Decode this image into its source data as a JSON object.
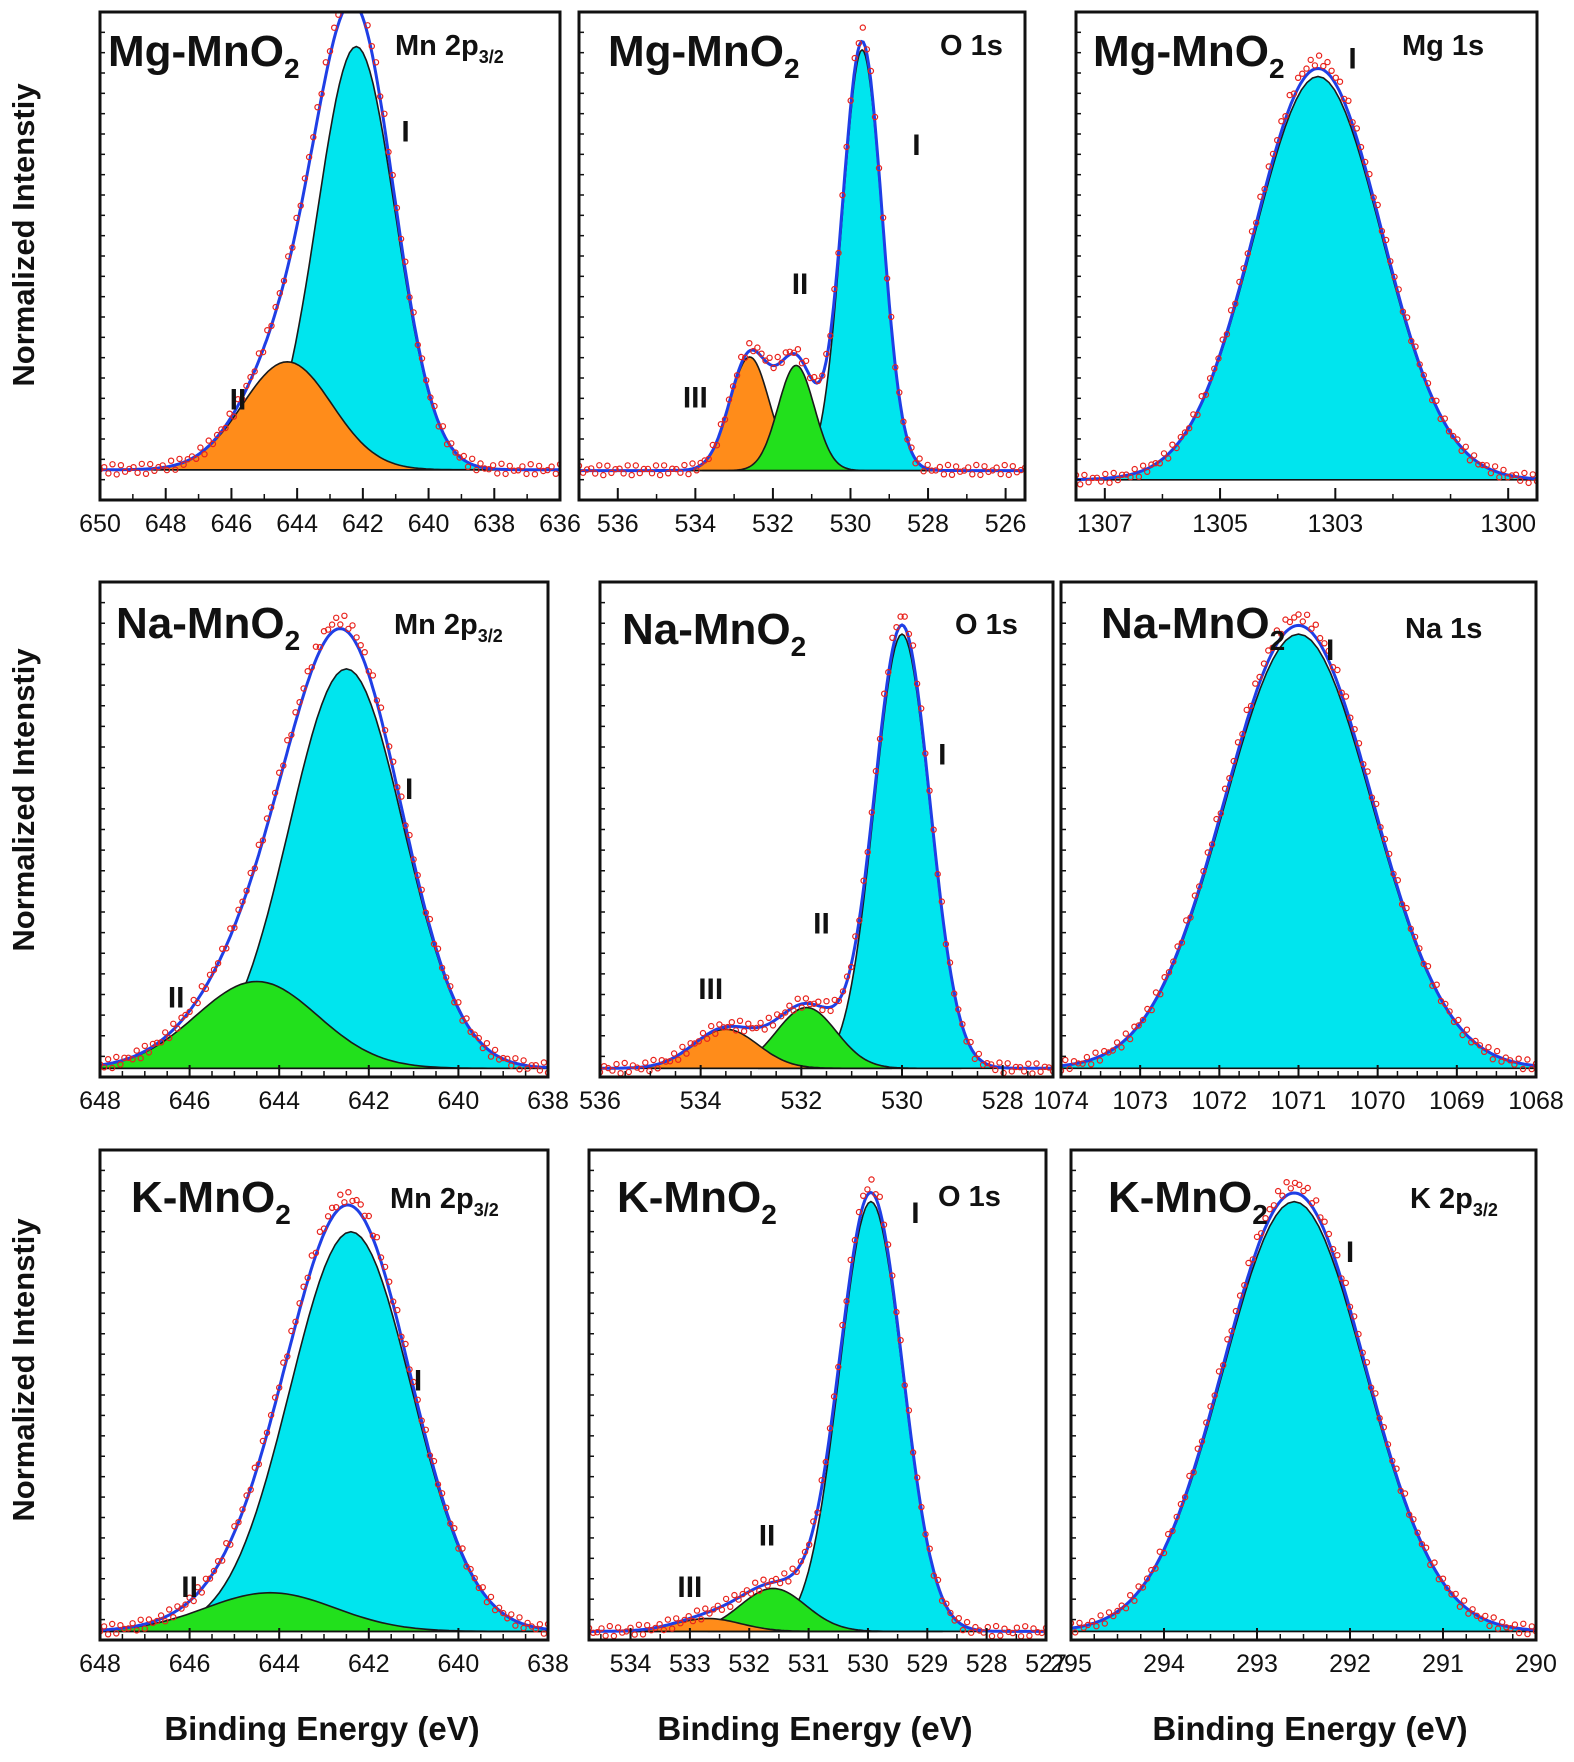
{
  "figure": {
    "y_axis_label": "Normalized Intenstiy",
    "x_axis_label": "Binding Energy (eV)"
  },
  "colors": {
    "peak_I": "#00e5ee",
    "peak_II_orange": "#ff8c1a",
    "peak_II_green": "#22e01c",
    "peak_III": "#ff8c1a",
    "envelope": "#1f3fe6",
    "raw_data": "#e8221c",
    "background": "#111111"
  },
  "chart_data": [
    {
      "type": "area",
      "sample": "Mg-MnO",
      "subscript": "2",
      "region": "Mn 2p",
      "region_sub": "3/2",
      "xlim": [
        650,
        636
      ],
      "ticks": [
        650,
        648,
        646,
        644,
        642,
        640,
        638,
        636
      ],
      "minor_step": 1,
      "ylim": [
        -0.05,
        1.08
      ],
      "baseline": 0.02,
      "peaks": [
        {
          "label": "I",
          "center": 642.2,
          "height": 0.98,
          "fwhm": 2.8,
          "color": "#00e5ee"
        },
        {
          "label": "II",
          "center": 644.3,
          "height": 0.25,
          "fwhm": 3.2,
          "color": "#ff8c1a"
        }
      ],
      "labels": [
        {
          "text": "I",
          "x": 640.7,
          "y": 0.78
        },
        {
          "text": "II",
          "x": 645.8,
          "y": 0.16
        }
      ]
    },
    {
      "type": "area",
      "sample": "Mg-MnO",
      "subscript": "2",
      "region": "O 1s",
      "region_sub": "",
      "xlim": [
        537,
        525.5
      ],
      "ticks": [
        536,
        534,
        532,
        530,
        528,
        526
      ],
      "minor_step": 1,
      "ylim": [
        -0.04,
        1.12
      ],
      "baseline": 0.03,
      "peaks": [
        {
          "label": "I",
          "center": 529.7,
          "height": 1.0,
          "fwhm": 1.2,
          "color": "#00e5ee"
        },
        {
          "label": "II",
          "center": 531.4,
          "height": 0.25,
          "fwhm": 1.1,
          "color": "#22e01c"
        },
        {
          "label": "III",
          "center": 532.6,
          "height": 0.27,
          "fwhm": 1.2,
          "color": "#ff8c1a"
        }
      ],
      "labels": [
        {
          "text": "I",
          "x": 528.3,
          "y": 0.78
        },
        {
          "text": "II",
          "x": 531.3,
          "y": 0.45
        },
        {
          "text": "III",
          "x": 534.0,
          "y": 0.18
        }
      ]
    },
    {
      "type": "area",
      "sample": "Mg-MnO",
      "subscript": "2",
      "region": "Mg 1s",
      "region_sub": "",
      "xlim": [
        1307.5,
        1299.5
      ],
      "ticks": [
        1307,
        1305,
        1303,
        1300
      ],
      "minor_step": 1,
      "ylim": [
        -0.05,
        1.16
      ],
      "baseline": 0.0,
      "peaks": [
        {
          "label": "I",
          "center": 1303.3,
          "height": 1.0,
          "fwhm": 2.6,
          "color": "#00e5ee"
        }
      ],
      "labels": [
        {
          "text": "I",
          "x": 1302.7,
          "y": 1.02
        }
      ]
    },
    {
      "type": "area",
      "sample": "Na-MnO",
      "subscript": "2",
      "region": "Mn 2p",
      "region_sub": "3/2",
      "xlim": [
        648,
        638
      ],
      "ticks": [
        648,
        646,
        644,
        642,
        640,
        638
      ],
      "minor_step": 0.5,
      "ylim": [
        -0.02,
        1.12
      ],
      "baseline": 0.0,
      "peaks": [
        {
          "label": "I",
          "center": 642.5,
          "height": 0.92,
          "fwhm": 3.0,
          "color": "#00e5ee"
        },
        {
          "label": "II",
          "center": 644.5,
          "height": 0.2,
          "fwhm": 3.2,
          "color": "#22e01c"
        }
      ],
      "labels": [
        {
          "text": "I",
          "x": 641.1,
          "y": 0.62
        },
        {
          "text": "II",
          "x": 646.3,
          "y": 0.14
        }
      ]
    },
    {
      "type": "area",
      "sample": "Na-MnO",
      "subscript": "2",
      "region": "O 1s",
      "region_sub": "",
      "xlim": [
        536,
        527
      ],
      "ticks": [
        536,
        534,
        532,
        530,
        528
      ],
      "minor_step": 0.5,
      "ylim": [
        -0.02,
        1.12
      ],
      "baseline": 0.0,
      "peaks": [
        {
          "label": "I",
          "center": 530.0,
          "height": 1.0,
          "fwhm": 1.3,
          "color": "#00e5ee"
        },
        {
          "label": "II",
          "center": 531.9,
          "height": 0.14,
          "fwhm": 1.4,
          "color": "#22e01c"
        },
        {
          "label": "III",
          "center": 533.5,
          "height": 0.09,
          "fwhm": 1.5,
          "color": "#ff8c1a"
        }
      ],
      "labels": [
        {
          "text": "I",
          "x": 529.2,
          "y": 0.7
        },
        {
          "text": "II",
          "x": 531.6,
          "y": 0.31
        },
        {
          "text": "III",
          "x": 533.8,
          "y": 0.16
        }
      ]
    },
    {
      "type": "area",
      "sample": "Na-MnO",
      "subscript": "2",
      "region": "Na 1s",
      "region_sub": "",
      "xlim": [
        1074,
        1068
      ],
      "ticks": [
        1074,
        1073,
        1072,
        1071,
        1070,
        1069,
        1068
      ],
      "minor_step": 0.25,
      "ylim": [
        -0.02,
        1.12
      ],
      "baseline": 0.0,
      "peaks": [
        {
          "label": "I",
          "center": 1071.0,
          "height": 1.0,
          "fwhm": 2.2,
          "color": "#00e5ee"
        }
      ],
      "labels": [
        {
          "text": "I",
          "x": 1070.6,
          "y": 0.94
        }
      ]
    },
    {
      "type": "area",
      "sample": "K-MnO",
      "subscript": "2",
      "region": "Mn 2p",
      "region_sub": "3/2",
      "xlim": [
        648,
        638
      ],
      "ticks": [
        648,
        646,
        644,
        642,
        640,
        638
      ],
      "minor_step": 0.5,
      "ylim": [
        -0.02,
        1.12
      ],
      "baseline": 0.0,
      "peaks": [
        {
          "label": "I",
          "center": 642.4,
          "height": 0.93,
          "fwhm": 3.2,
          "color": "#00e5ee"
        },
        {
          "label": "II",
          "center": 644.2,
          "height": 0.09,
          "fwhm": 3.4,
          "color": "#22e01c"
        }
      ],
      "labels": [
        {
          "text": "I",
          "x": 640.9,
          "y": 0.56
        },
        {
          "text": "II",
          "x": 646.0,
          "y": 0.08
        }
      ]
    },
    {
      "type": "area",
      "sample": "K-MnO",
      "subscript": "2",
      "region": "O 1s",
      "region_sub": "",
      "xlim": [
        534.7,
        527
      ],
      "ticks": [
        534,
        533,
        532,
        531,
        530,
        529,
        528,
        527
      ],
      "minor_step": 0.5,
      "ylim": [
        -0.02,
        1.12
      ],
      "baseline": 0.0,
      "peaks": [
        {
          "label": "I",
          "center": 529.95,
          "height": 1.0,
          "fwhm": 1.25,
          "color": "#00e5ee"
        },
        {
          "label": "II",
          "center": 531.6,
          "height": 0.1,
          "fwhm": 1.3,
          "color": "#22e01c"
        },
        {
          "label": "III",
          "center": 532.7,
          "height": 0.03,
          "fwhm": 1.3,
          "color": "#ff8c1a"
        }
      ],
      "labels": [
        {
          "text": "I",
          "x": 529.2,
          "y": 0.95
        },
        {
          "text": "II",
          "x": 531.7,
          "y": 0.2
        },
        {
          "text": "III",
          "x": 533.0,
          "y": 0.08
        }
      ]
    },
    {
      "type": "area",
      "sample": "K-MnO",
      "subscript": "2",
      "region": "K 2p",
      "region_sub": "3/2",
      "xlim": [
        295,
        290
      ],
      "ticks": [
        295,
        294,
        293,
        292,
        291,
        290
      ],
      "minor_step": 0.25,
      "ylim": [
        -0.02,
        1.12
      ],
      "baseline": 0.0,
      "peaks": [
        {
          "label": "I",
          "center": 292.6,
          "height": 1.0,
          "fwhm": 1.8,
          "color": "#00e5ee"
        }
      ],
      "labels": [
        {
          "text": "I",
          "x": 292.0,
          "y": 0.86
        }
      ]
    }
  ]
}
